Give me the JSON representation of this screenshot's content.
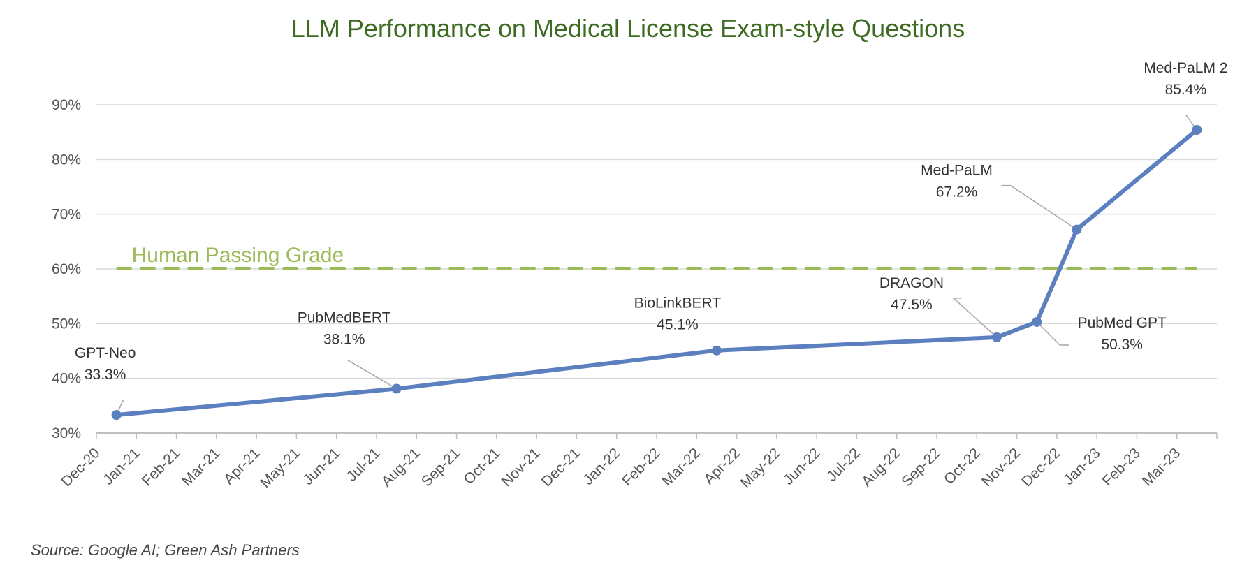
{
  "chart_data": {
    "type": "line",
    "title": "LLM Performance on Medical License Exam-style Questions",
    "source": "Source: Google AI; Green Ash Partners",
    "x_ticks": [
      "Dec-20",
      "Jan-21",
      "Feb-21",
      "Mar-21",
      "Apr-21",
      "May-21",
      "Jun-21",
      "Jul-21",
      "Aug-21",
      "Sep-21",
      "Oct-21",
      "Nov-21",
      "Dec-21",
      "Jan-22",
      "Feb-22",
      "Mar-22",
      "Apr-22",
      "May-22",
      "Jun-22",
      "Jul-22",
      "Aug-22",
      "Sep-22",
      "Oct-22",
      "Nov-22",
      "Dec-22",
      "Jan-23",
      "Feb-23",
      "Mar-23"
    ],
    "y_ticks": [
      "30%",
      "40%",
      "50%",
      "60%",
      "70%",
      "80%",
      "90%"
    ],
    "ylim": [
      30,
      90
    ],
    "grid": true,
    "series": [
      {
        "color": "#5b7fbf",
        "points": [
          {
            "x": "Dec-20",
            "y": 33.3,
            "model": "GPT-Neo",
            "label": "33.3%"
          },
          {
            "x": "Jul-21",
            "y": 38.1,
            "model": "PubMedBERT",
            "label": "38.1%"
          },
          {
            "x": "Mar-22",
            "y": 45.1,
            "model": "BioLinkBERT",
            "label": "45.1%"
          },
          {
            "x": "Oct-22",
            "y": 47.5,
            "model": "DRAGON",
            "label": "47.5%"
          },
          {
            "x": "Nov-22",
            "y": 50.3,
            "model": "PubMed GPT",
            "label": "50.3%"
          },
          {
            "x": "Dec-22",
            "y": 67.2,
            "model": "Med-PaLM",
            "label": "67.2%"
          },
          {
            "x": "Mar-23",
            "y": 85.4,
            "model": "Med-PaLM 2",
            "label": "85.4%"
          }
        ]
      }
    ],
    "reference_line": {
      "label": "Human Passing Grade",
      "y": 60,
      "color": "#9bbb59"
    }
  }
}
